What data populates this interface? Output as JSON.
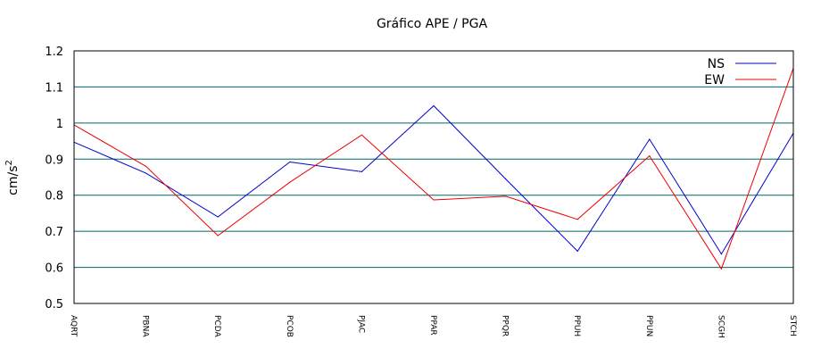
{
  "chart_data": {
    "type": "line",
    "title": "Gráfico  APE / PGA",
    "ylabel": "cm/s",
    "ylabel_sup": "2",
    "xlabel": "",
    "categories": [
      "AQRT",
      "PBNA",
      "PCDA",
      "PCOB",
      "PJAC",
      "PPAR",
      "PPQR",
      "PPUH",
      "PPUN",
      "SCGH",
      "STCH"
    ],
    "ylim": [
      0.5,
      1.2
    ],
    "yticks": [
      0.5,
      0.6,
      0.7,
      0.8,
      0.9,
      1,
      1.1,
      1.2
    ],
    "ytick_labels": [
      "0.5",
      "0.6",
      "0.7",
      "0.8",
      "0.9",
      "1",
      "1.1",
      "1.2"
    ],
    "grid": true,
    "legend_position": "top-right",
    "series": [
      {
        "name": "NS",
        "color": "#0000cc",
        "values": [
          0.947,
          0.861,
          0.74,
          0.892,
          0.865,
          1.048,
          0.845,
          0.645,
          0.955,
          0.637,
          0.972
        ]
      },
      {
        "name": "EW",
        "color": "#ee0000",
        "values": [
          0.995,
          0.88,
          0.688,
          0.836,
          0.967,
          0.787,
          0.797,
          0.733,
          0.909,
          0.596,
          1.152
        ]
      }
    ],
    "colors": {
      "grid": "#006666",
      "axes": "#000000",
      "background": "#ffffff"
    }
  }
}
